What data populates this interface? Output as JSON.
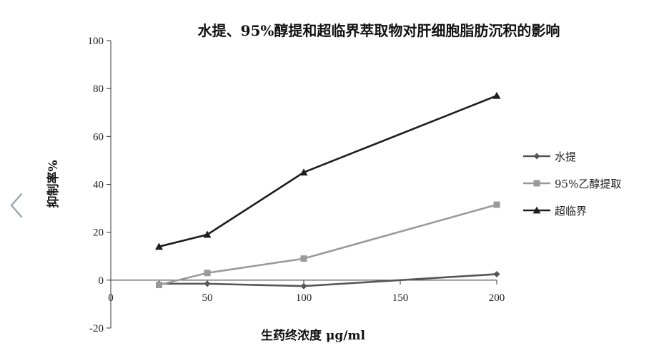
{
  "chart_data": {
    "type": "line",
    "title": "水提、95%醇提和超临界萃取物对肝细胞脂肪沉积的影响",
    "xlabel": "生药终浓度 μg/ml",
    "ylabel": "抑制率%",
    "xlim": [
      0,
      200
    ],
    "ylim": [
      -20,
      100
    ],
    "xticks": [
      "0",
      "50",
      "100",
      "150",
      "200"
    ],
    "yticks": [
      "100",
      "80",
      "60",
      "40",
      "20",
      "0",
      "-20"
    ],
    "xtick_values": [
      0,
      50,
      100,
      150,
      200
    ],
    "ytick_values": [
      100,
      80,
      60,
      40,
      20,
      0,
      -20
    ],
    "grid": false,
    "legend_position": "right",
    "series": [
      {
        "name": "水提",
        "marker": "diamond",
        "color": "#555555",
        "x": [
          25,
          50,
          100,
          200
        ],
        "y": [
          -1.5,
          -1.5,
          -2.5,
          2.5
        ]
      },
      {
        "name": "95%乙醇提取",
        "marker": "square",
        "color": "#9a9a9a",
        "x": [
          25,
          50,
          100,
          200
        ],
        "y": [
          -2,
          3,
          9,
          31.5
        ]
      },
      {
        "name": "超临界",
        "marker": "triangle",
        "color": "#1e1e1e",
        "x": [
          25,
          50,
          100,
          200
        ],
        "y": [
          14,
          19,
          45,
          77
        ]
      }
    ]
  },
  "nav": {
    "back_icon": "chevron-left-icon",
    "color": "#9aa4b0"
  }
}
